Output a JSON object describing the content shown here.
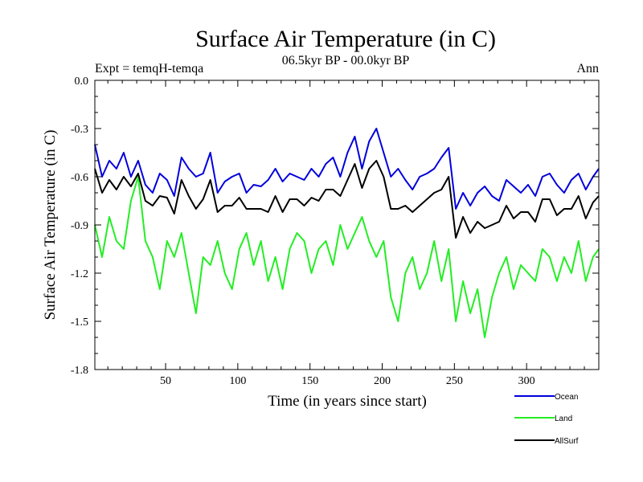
{
  "chart_data": {
    "type": "line",
    "title": "Surface Air Temperature (in C)",
    "subtitle": "06.5kyr BP - 00.0kyr BP",
    "left_label": "Expt = temqH-temqa",
    "right_label": "Ann",
    "xlabel": "Time (in years since start)",
    "ylabel": "Surface Air Temperature (in C)",
    "xlim": [
      1,
      350
    ],
    "ylim": [
      -1.8,
      0.0
    ],
    "x_ticks": [
      50,
      100,
      150,
      200,
      250,
      300
    ],
    "x_tick_labels": [
      "50",
      "100",
      "150",
      "200",
      "250",
      "300"
    ],
    "y_ticks": [
      0.0,
      -0.3,
      -0.6,
      -0.9,
      -1.2,
      -1.5,
      -1.8
    ],
    "y_tick_labels": [
      "0.0",
      "-0.3",
      "-0.6",
      "-0.9",
      "-1.2",
      "-1.5",
      "-1.8"
    ],
    "legend_position": "below-right",
    "series": [
      {
        "name": "Ocean",
        "color": "#0000dd",
        "x": [
          1,
          6,
          11,
          16,
          21,
          26,
          31,
          36,
          41,
          46,
          51,
          56,
          61,
          66,
          71,
          76,
          81,
          86,
          91,
          96,
          101,
          106,
          111,
          116,
          121,
          126,
          131,
          136,
          141,
          146,
          151,
          156,
          161,
          166,
          171,
          176,
          181,
          186,
          191,
          196,
          201,
          206,
          211,
          216,
          221,
          226,
          231,
          236,
          241,
          246,
          251,
          256,
          261,
          266,
          271,
          276,
          281,
          286,
          291,
          296,
          301,
          306,
          311,
          316,
          321,
          326,
          331,
          336,
          341,
          346,
          350
        ],
        "values": [
          -0.4,
          -0.6,
          -0.5,
          -0.55,
          -0.45,
          -0.6,
          -0.5,
          -0.65,
          -0.7,
          -0.58,
          -0.62,
          -0.72,
          -0.48,
          -0.55,
          -0.6,
          -0.58,
          -0.45,
          -0.7,
          -0.63,
          -0.6,
          -0.58,
          -0.7,
          -0.65,
          -0.66,
          -0.62,
          -0.55,
          -0.63,
          -0.58,
          -0.6,
          -0.62,
          -0.55,
          -0.6,
          -0.52,
          -0.48,
          -0.6,
          -0.45,
          -0.35,
          -0.55,
          -0.38,
          -0.3,
          -0.45,
          -0.6,
          -0.55,
          -0.62,
          -0.68,
          -0.6,
          -0.58,
          -0.55,
          -0.48,
          -0.42,
          -0.8,
          -0.7,
          -0.78,
          -0.7,
          -0.66,
          -0.72,
          -0.75,
          -0.62,
          -0.66,
          -0.7,
          -0.65,
          -0.72,
          -0.6,
          -0.58,
          -0.65,
          -0.7,
          -0.62,
          -0.58,
          -0.68,
          -0.6,
          -0.55
        ]
      },
      {
        "name": "Land",
        "color": "#22ee22",
        "x": [
          1,
          6,
          11,
          16,
          21,
          26,
          31,
          36,
          41,
          46,
          51,
          56,
          61,
          66,
          71,
          76,
          81,
          86,
          91,
          96,
          101,
          106,
          111,
          116,
          121,
          126,
          131,
          136,
          141,
          146,
          151,
          156,
          161,
          166,
          171,
          176,
          181,
          186,
          191,
          196,
          201,
          206,
          211,
          216,
          221,
          226,
          231,
          236,
          241,
          246,
          251,
          256,
          261,
          266,
          271,
          276,
          281,
          286,
          291,
          296,
          301,
          306,
          311,
          316,
          321,
          326,
          331,
          336,
          341,
          346,
          350
        ],
        "values": [
          -0.9,
          -1.1,
          -0.85,
          -1.0,
          -1.05,
          -0.75,
          -0.6,
          -1.0,
          -1.1,
          -1.3,
          -1.0,
          -1.1,
          -0.95,
          -1.2,
          -1.45,
          -1.1,
          -1.15,
          -1.0,
          -1.2,
          -1.3,
          -1.05,
          -0.95,
          -1.15,
          -1.0,
          -1.25,
          -1.1,
          -1.3,
          -1.05,
          -0.95,
          -1.0,
          -1.2,
          -1.05,
          -1.0,
          -1.15,
          -0.9,
          -1.05,
          -0.95,
          -0.85,
          -1.0,
          -1.1,
          -1.0,
          -1.35,
          -1.5,
          -1.2,
          -1.1,
          -1.3,
          -1.2,
          -1.0,
          -1.25,
          -1.05,
          -1.5,
          -1.25,
          -1.45,
          -1.3,
          -1.6,
          -1.35,
          -1.2,
          -1.1,
          -1.3,
          -1.15,
          -1.2,
          -1.25,
          -1.05,
          -1.1,
          -1.25,
          -1.1,
          -1.2,
          -1.0,
          -1.25,
          -1.1,
          -1.05
        ]
      },
      {
        "name": "AllSurf",
        "color": "#000000",
        "x": [
          1,
          6,
          11,
          16,
          21,
          26,
          31,
          36,
          41,
          46,
          51,
          56,
          61,
          66,
          71,
          76,
          81,
          86,
          91,
          96,
          101,
          106,
          111,
          116,
          121,
          126,
          131,
          136,
          141,
          146,
          151,
          156,
          161,
          166,
          171,
          176,
          181,
          186,
          191,
          196,
          201,
          206,
          211,
          216,
          221,
          226,
          231,
          236,
          241,
          246,
          251,
          256,
          261,
          266,
          271,
          276,
          281,
          286,
          291,
          296,
          301,
          306,
          311,
          316,
          321,
          326,
          331,
          336,
          341,
          346,
          350
        ],
        "values": [
          -0.55,
          -0.7,
          -0.62,
          -0.68,
          -0.6,
          -0.66,
          -0.58,
          -0.75,
          -0.78,
          -0.72,
          -0.73,
          -0.83,
          -0.62,
          -0.72,
          -0.8,
          -0.74,
          -0.62,
          -0.82,
          -0.78,
          -0.78,
          -0.73,
          -0.8,
          -0.8,
          -0.8,
          -0.82,
          -0.72,
          -0.82,
          -0.74,
          -0.74,
          -0.78,
          -0.73,
          -0.75,
          -0.68,
          -0.68,
          -0.72,
          -0.62,
          -0.52,
          -0.67,
          -0.55,
          -0.5,
          -0.6,
          -0.8,
          -0.8,
          -0.78,
          -0.82,
          -0.78,
          -0.74,
          -0.7,
          -0.68,
          -0.6,
          -0.98,
          -0.85,
          -0.95,
          -0.88,
          -0.92,
          -0.9,
          -0.88,
          -0.78,
          -0.86,
          -0.82,
          -0.82,
          -0.88,
          -0.74,
          -0.74,
          -0.84,
          -0.8,
          -0.8,
          -0.72,
          -0.86,
          -0.76,
          -0.72
        ]
      }
    ]
  }
}
